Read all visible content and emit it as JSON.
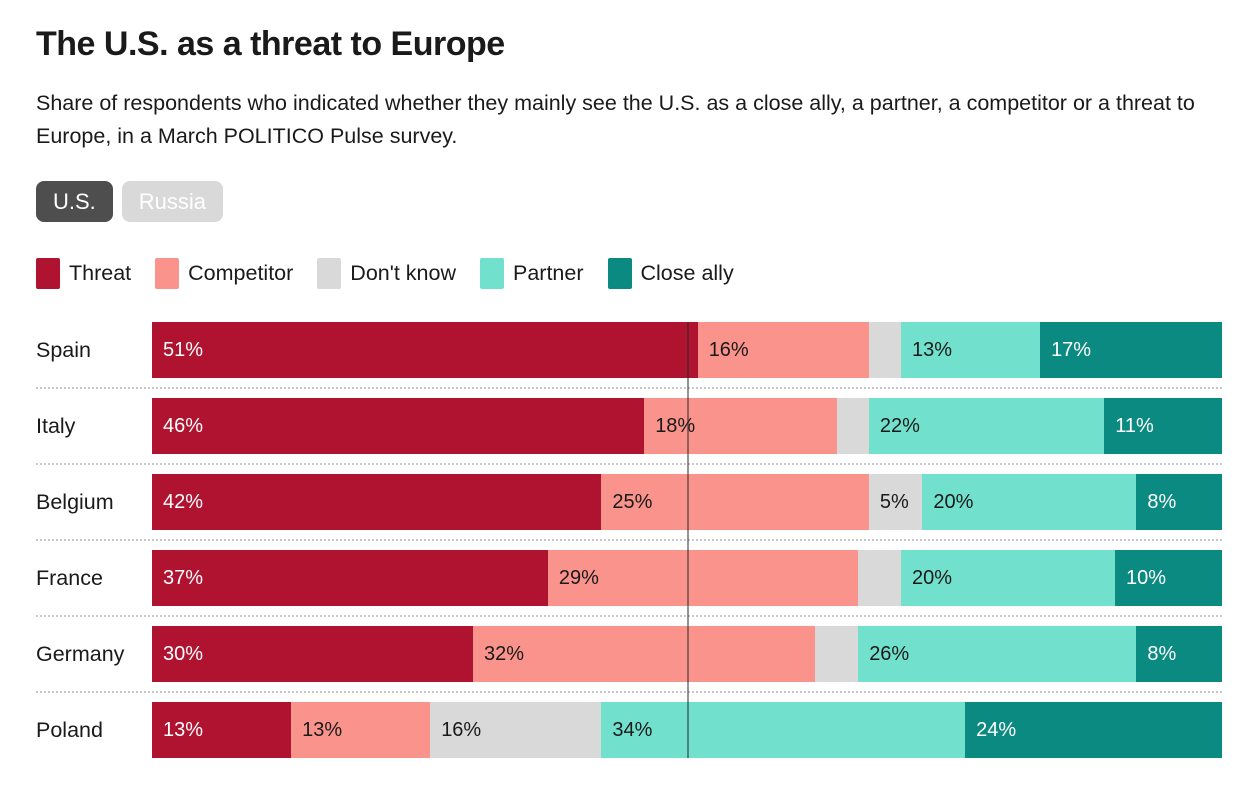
{
  "header": {
    "title": "The U.S. as a threat to Europe",
    "subtitle": "Share of respondents who indicated whether they mainly see the U.S. as a close ally, a partner, a competitor or a threat to Europe, in a March POLITICO Pulse survey."
  },
  "toggle": {
    "options": [
      {
        "label": "U.S.",
        "selected": true
      },
      {
        "label": "Russia",
        "selected": false
      }
    ]
  },
  "colors": {
    "threat": "#b01330",
    "competitor": "#f9938b",
    "dont_know": "#d9d9d9",
    "partner": "#71e1ce",
    "close_ally": "#0a8a80",
    "selected_toggle": "#4e4e4e",
    "unselected_toggle": "#d9d9d9",
    "text": "#1a1a1a"
  },
  "chart_data": {
    "type": "bar",
    "orientation": "horizontal-stacked",
    "unit": "%",
    "xlim": [
      0,
      100
    ],
    "legend_position": "top-left",
    "reference_line_percent": 50,
    "label_min_value": 5,
    "categories": [
      "Spain",
      "Italy",
      "Belgium",
      "France",
      "Germany",
      "Poland"
    ],
    "series": [
      {
        "name": "Threat",
        "color": "#b01330",
        "text_color": "#ffffff",
        "values": [
          51,
          46,
          42,
          37,
          30,
          13
        ]
      },
      {
        "name": "Competitor",
        "color": "#f9938b",
        "text_color": "#1a1a1a",
        "values": [
          16,
          18,
          25,
          29,
          32,
          13
        ]
      },
      {
        "name": "Don't know",
        "color": "#d9d9d9",
        "text_color": "#1a1a1a",
        "values": [
          3,
          3,
          5,
          4,
          4,
          16
        ]
      },
      {
        "name": "Partner",
        "color": "#71e1ce",
        "text_color": "#1a1a1a",
        "values": [
          13,
          22,
          20,
          20,
          26,
          34
        ]
      },
      {
        "name": "Close ally",
        "color": "#0a8a80",
        "text_color": "#ffffff",
        "values": [
          17,
          11,
          8,
          10,
          8,
          24
        ]
      }
    ]
  }
}
